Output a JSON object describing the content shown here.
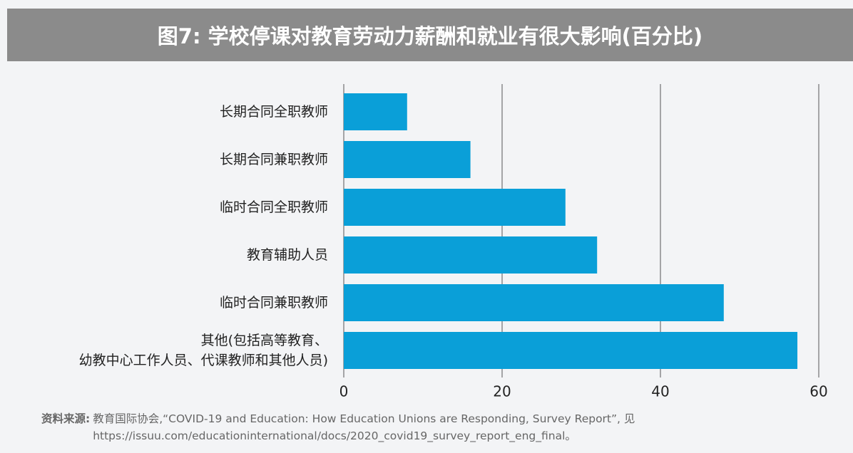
{
  "chart_data": {
    "type": "bar",
    "orientation": "horizontal",
    "title": "图7: 学校停课对教育劳动力薪酬和就业有很大影响(百分比)",
    "categories": [
      "长期合同全职教师",
      "长期合同兼职教师",
      "临时合同全职教师",
      "教育辅助人员",
      "临时合同兼职教师",
      "其他(包括高等教育、\n幼教中心工作人员、代课教师和其他人员)"
    ],
    "values": [
      8,
      16,
      28,
      32,
      48,
      57.3
    ],
    "color": "#0a9fd8",
    "xlim": [
      0,
      60
    ],
    "xticks": [
      0,
      20,
      40,
      60
    ],
    "grid": true,
    "source_label": "资料来源:",
    "source_text": "教育国际协会,“COVID-19 and Education: How Education Unions are Responding, Survey Report”, 见\nhttps://issuu.com/educationinternational/docs/2020_covid19_survey_report_eng_final。"
  }
}
